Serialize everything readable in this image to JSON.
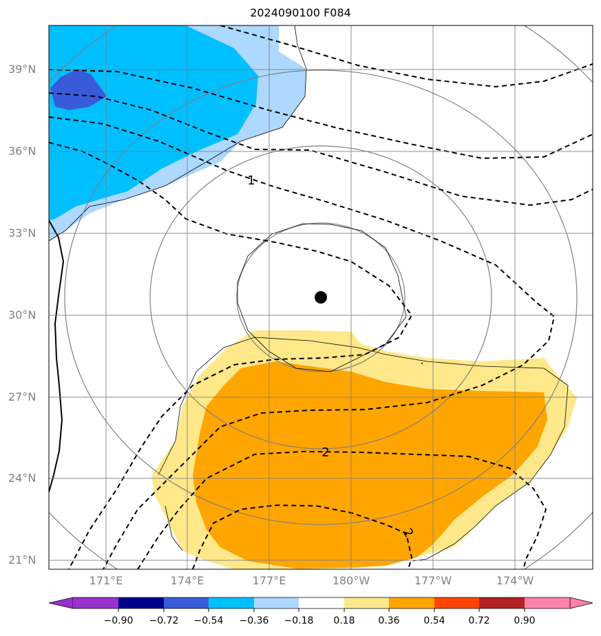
{
  "title": "2024090100 F084",
  "lat_labels": [
    "39°N",
    "36°N",
    "33°N",
    "30°N",
    "27°N",
    "24°N",
    "21°N"
  ],
  "lon_labels": [
    "171°E",
    "174°E",
    "177°E",
    "180°W",
    "177°W",
    "174°W"
  ],
  "contour_labels": [
    "1",
    "2",
    "2"
  ],
  "colorbar": {
    "tick_labels": [
      "−0.90",
      "−0.72",
      "−0.54",
      "−0.36",
      "−0.18",
      "0.18",
      "0.36",
      "0.54",
      "0.72",
      "0.90"
    ],
    "colors": [
      "#9932cc",
      "#00008b",
      "#3a5bd9",
      "#00bfff",
      "#add8ff",
      "#ffffff",
      "#ffe88a",
      "#ffa500",
      "#ff4500",
      "#b22222",
      "#ff82ab"
    ]
  },
  "storm_center": {
    "lat": 30.6,
    "lon": 178.9
  },
  "chart_data": {
    "type": "heatmap",
    "title": "2024090100 F084",
    "lat_range": [
      20.6,
      40.6
    ],
    "lon_range": [
      "169°E",
      "171°W"
    ],
    "levels": [
      -0.9,
      -0.72,
      -0.54,
      -0.36,
      -0.18,
      0.18,
      0.36,
      0.54,
      0.72,
      0.9
    ],
    "grid": true
  }
}
